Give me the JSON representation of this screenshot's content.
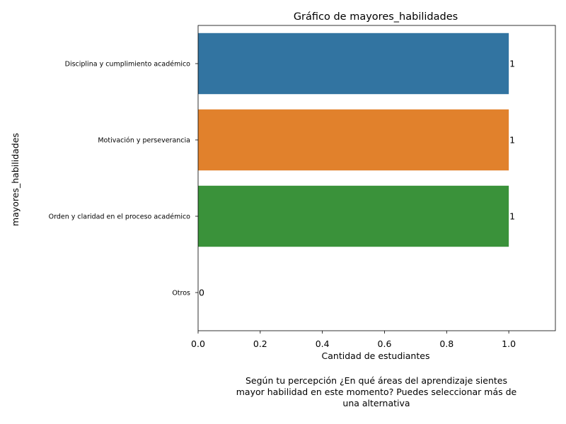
{
  "chart_data": {
    "type": "bar",
    "orientation": "horizontal",
    "title": "Gráfico de mayores_habilidades",
    "xlabel": "Cantidad de estudiantes",
    "ylabel": "mayores_habilidades",
    "categories": [
      "Disciplina y cumplimiento académico",
      "Motivación y perseverancia",
      "Orden y claridad en el proceso académico",
      "Otros"
    ],
    "values": [
      1,
      1,
      1,
      0
    ],
    "data_labels": [
      "1",
      "1",
      "1",
      "0"
    ],
    "colors": [
      "#3274a1",
      "#e1812c",
      "#3a923a",
      "#c03d3e"
    ],
    "xlim": [
      0,
      1.15
    ],
    "xticks": [
      "0.0",
      "0.2",
      "0.4",
      "0.6",
      "0.8",
      "1.0"
    ],
    "grid": false,
    "legend": "none"
  },
  "caption_lines": [
    "Según tu percepción ¿En qué áreas del aprendizaje sientes",
    "mayor habilidad en este momento? Puedes seleccionar más de",
    "una alternativa"
  ]
}
